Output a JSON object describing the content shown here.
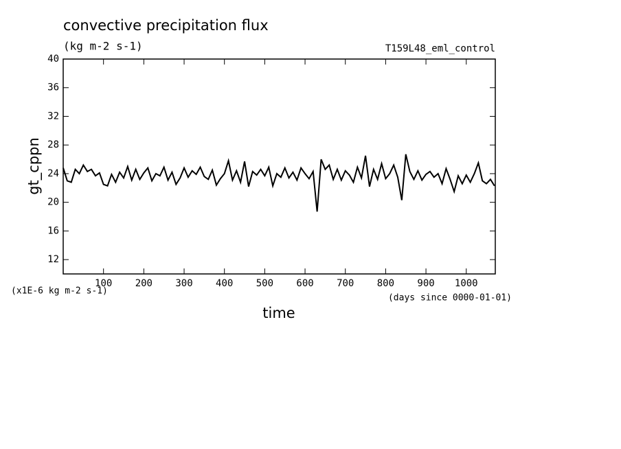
{
  "chart_data": {
    "type": "line",
    "title": "convective precipitation flux",
    "subtitle": "(kg m-2 s-1)",
    "annotation": "T159L48_eml_control",
    "y_label": "gt_cppn",
    "x_label": "time",
    "y_scale_note": "(x1E-6 kg m-2 s-1)",
    "x_units": "(days since 0000-01-01)",
    "xlim": [
      0,
      1072
    ],
    "ylim": [
      10,
      40
    ],
    "xticks": [
      100,
      200,
      300,
      400,
      500,
      600,
      700,
      800,
      900,
      1000
    ],
    "yticks": [
      12,
      16,
      20,
      24,
      28,
      32,
      36,
      40
    ],
    "color": "#000000",
    "x": [
      0,
      10,
      20,
      30,
      40,
      50,
      60,
      70,
      80,
      90,
      100,
      110,
      120,
      130,
      140,
      150,
      160,
      170,
      180,
      190,
      200,
      210,
      220,
      230,
      240,
      250,
      260,
      270,
      280,
      290,
      300,
      310,
      320,
      330,
      340,
      350,
      360,
      370,
      380,
      390,
      400,
      410,
      420,
      430,
      440,
      450,
      460,
      470,
      480,
      490,
      500,
      510,
      520,
      530,
      540,
      550,
      560,
      570,
      580,
      590,
      600,
      610,
      620,
      630,
      640,
      650,
      660,
      670,
      680,
      690,
      700,
      710,
      720,
      730,
      740,
      750,
      760,
      770,
      780,
      790,
      800,
      810,
      820,
      830,
      840,
      850,
      860,
      870,
      880,
      890,
      900,
      910,
      920,
      930,
      940,
      950,
      960,
      970,
      980,
      990,
      1000,
      1010,
      1020,
      1030,
      1040,
      1050,
      1060,
      1070
    ],
    "values": [
      24.8,
      23,
      22.8,
      24.6,
      24,
      25.2,
      24.3,
      24.6,
      23.7,
      24.1,
      22.5,
      22.3,
      23.9,
      22.8,
      24.2,
      23.4,
      25,
      23.1,
      24.6,
      23.2,
      24.1,
      24.8,
      23,
      24,
      23.7,
      24.9,
      23.1,
      24.2,
      22.5,
      23.4,
      24.8,
      23.5,
      24.4,
      23.9,
      24.9,
      23.6,
      23.2,
      24.5,
      22.4,
      23.3,
      24,
      25.8,
      23.1,
      24.4,
      22.8,
      25.7,
      22.2,
      24.3,
      23.8,
      24.6,
      23.7,
      24.9,
      22.3,
      24,
      23.5,
      24.8,
      23.4,
      24.2,
      23.1,
      24.8,
      24,
      23.3,
      24.3,
      18.7,
      26,
      24.6,
      25.2,
      23.2,
      24.6,
      23.1,
      24.4,
      23.8,
      22.8,
      24.9,
      23.4,
      26.5,
      22.2,
      24.6,
      23.2,
      25.4,
      23.3,
      24,
      25.2,
      23.5,
      20.3,
      26.7,
      24.3,
      23.2,
      24.4,
      23.1,
      23.9,
      24.3,
      23.5,
      24,
      22.6,
      24.7,
      23.2,
      21.5,
      23.7,
      22.6,
      23.8,
      22.8,
      24,
      25.5,
      23,
      22.6,
      23.2,
      22.3
    ]
  }
}
